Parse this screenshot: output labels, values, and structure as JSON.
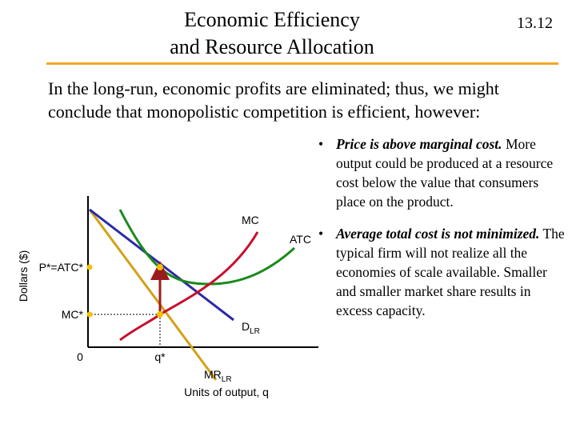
{
  "slide": {
    "title_line1": "Economic Efficiency",
    "title_line2": "and Resource Allocation",
    "number": "13.12",
    "intro": "In the long-run, economic profits are eliminated; thus, we might conclude that monopolistic competition is efficient, however:",
    "bullets": [
      {
        "emphasis": "Price is above marginal cost.",
        "text": " More output could be produced at a resource cost below the value that consumers place on the product."
      },
      {
        "emphasis": "Average total cost is not minimized.",
        "text": " The typical firm will not realize all the economies of scale available.  Smaller and smaller market share results in excess capacity."
      }
    ]
  },
  "diagram": {
    "y_axis_label": "Dollars ($)",
    "x_axis_label": "Units of output, q",
    "origin_label": "0",
    "price_label": "P*=ATC*",
    "mc_star_label": "MC*",
    "q_star_label": "q*",
    "curves": {
      "mc": "MC",
      "atc": "ATC",
      "demand": "D",
      "demand_sub": "LR",
      "mr": "MR",
      "mr_sub": "LR"
    },
    "colors": {
      "mc": "#c8102e",
      "atc": "#1a8a1a",
      "demand": "#2a2aa8",
      "mr": "#d4a017",
      "arrow": "#9b1c1c",
      "points": "#f2c200",
      "accent_rule": "#f5a623"
    }
  }
}
